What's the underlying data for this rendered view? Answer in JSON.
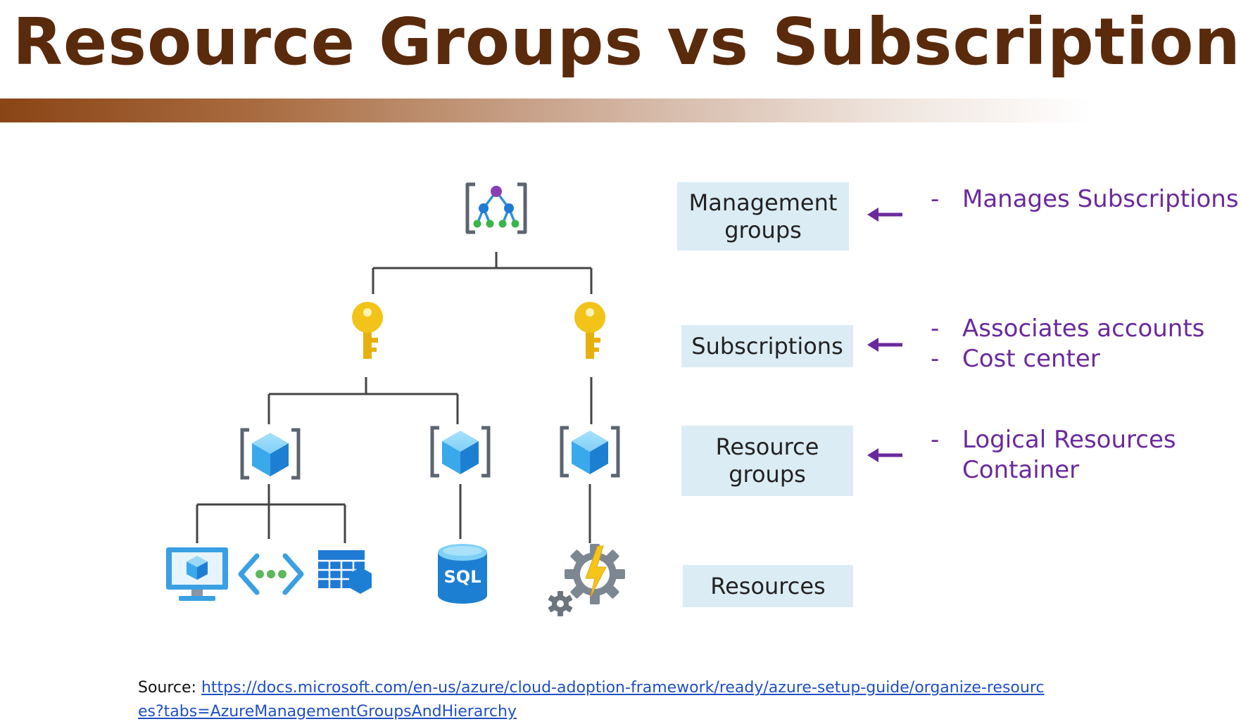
{
  "title": "Resource Groups vs Subscriptions",
  "levels": [
    {
      "label_line1": "Management",
      "label_line2": "groups",
      "notes": [
        "Manages Subscriptions"
      ]
    },
    {
      "label_line1": "Subscriptions",
      "label_line2": "",
      "notes": [
        "Associates accounts",
        "Cost center"
      ]
    },
    {
      "label_line1": "Resource",
      "label_line2": "groups",
      "notes": [
        "Logical Resources",
        "Container"
      ]
    },
    {
      "label_line1": "Resources",
      "label_line2": "",
      "notes": []
    }
  ],
  "note_dash": "-",
  "icons": {
    "management_group": "management-group-icon",
    "subscription": "key-icon",
    "resource_group": "cube-icon",
    "virtual_machine": "virtual-machine-icon",
    "api": "api-icon",
    "storage": "table-storage-icon",
    "sql": "sql-database-icon",
    "function": "function-app-icon"
  },
  "sql_label": "SQL",
  "source": {
    "prefix": "Source: ",
    "url": "https://docs.microsoft.com/en-us/azure/cloud-adoption-framework/ready/azure-setup-guide/organize-resources?tabs=AzureManagementGroupsAndHierarchy"
  },
  "colors": {
    "title": "#5a2a0c",
    "label_bg": "#dcecf5",
    "note": "#6a2a9c",
    "arrow": "#6a2a9c",
    "link": "#1f4fc4",
    "key": "#f2c318",
    "cube": "#5cbdf2"
  }
}
